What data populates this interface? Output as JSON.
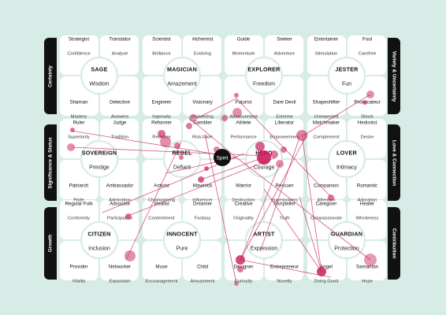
{
  "categories": {
    "top_left": "Certainty",
    "top_right": "Variety & Uncertainty",
    "mid_left": "Significance & Status",
    "mid_right": "Love & Connection",
    "bottom_left": "Growth",
    "bottom_right": "Contribution"
  },
  "spirit": {
    "label": "Spirit"
  },
  "colors": {
    "background": "#d7ece6",
    "card": "#ffffff",
    "accent": "#c81e5b",
    "spirit": "#111111"
  },
  "archetypes": [
    {
      "name": "SAGE",
      "quality": "Wisdom",
      "corners": [
        {
          "role": "Strategist",
          "trait": "Confidence"
        },
        {
          "role": "Translator",
          "trait": "Analyse"
        },
        {
          "role": "Shaman",
          "trait": "Mastery"
        },
        {
          "role": "Detective",
          "trait": "Answers"
        }
      ]
    },
    {
      "name": "MAGICIAN",
      "quality": "Amazement",
      "corners": [
        {
          "role": "Scientist",
          "trait": "Brilliance"
        },
        {
          "role": "Alchemist",
          "trait": "Evolving"
        },
        {
          "role": "Engineer",
          "trait": "Ingenuity"
        },
        {
          "role": "Visionary",
          "trait": "Pioneering"
        }
      ]
    },
    {
      "name": "EXPLORER",
      "quality": "Freedom",
      "corners": [
        {
          "role": "Guide",
          "trait": "Momentum"
        },
        {
          "role": "Seeker",
          "trait": "Adventure"
        },
        {
          "role": "Futurist",
          "trait": "Advancement"
        },
        {
          "role": "Dare Devil",
          "trait": "Extreme"
        }
      ]
    },
    {
      "name": "JESTER",
      "quality": "Fun",
      "corners": [
        {
          "role": "Entertainer",
          "trait": "Stimulation"
        },
        {
          "role": "Fool",
          "trait": "Carefree"
        },
        {
          "role": "Shapeshifter",
          "trait": "Unexpected"
        },
        {
          "role": "Provocateur",
          "trait": "Shock"
        }
      ]
    },
    {
      "name": "SOVEREIGN",
      "quality": "Prestige",
      "corners": [
        {
          "role": "Ruler",
          "trait": "Superiority"
        },
        {
          "role": "Judge",
          "trait": "Tradition"
        },
        {
          "role": "Patriarch",
          "trait": "Pride"
        },
        {
          "role": "Ambassador",
          "trait": "Admiration"
        }
      ]
    },
    {
      "name": "REBEL",
      "quality": "Defiant",
      "corners": [
        {
          "role": "Reformer",
          "trait": "Redefine"
        },
        {
          "role": "Gambler",
          "trait": "Risk-taker"
        },
        {
          "role": "Activist",
          "trait": "Championing"
        },
        {
          "role": "Maverick",
          "trait": "Influencer"
        }
      ]
    },
    {
      "name": "HERO",
      "quality": "Courage",
      "corners": [
        {
          "role": "Athlete",
          "trait": "Performance"
        },
        {
          "role": "Liberator",
          "trait": "Empowerment"
        },
        {
          "role": "Warrior",
          "trait": "Destruction"
        },
        {
          "role": "Rescuer",
          "trait": "Superpowers"
        }
      ]
    },
    {
      "name": "LOVER",
      "quality": "Intimacy",
      "corners": [
        {
          "role": "Matchmaker",
          "trait": "Complement"
        },
        {
          "role": "Hedonist",
          "trait": "Desire"
        },
        {
          "role": "Companion",
          "trait": "Attention"
        },
        {
          "role": "Romantic",
          "trait": "Adoration"
        }
      ]
    },
    {
      "name": "CITIZEN",
      "quality": "Inclusion",
      "corners": [
        {
          "role": "Regular Folk",
          "trait": "Conformity"
        },
        {
          "role": "Advocate",
          "trait": "Participation"
        },
        {
          "role": "Provider",
          "trait": "Vitality"
        },
        {
          "role": "Networker",
          "trait": "Expansion"
        }
      ]
    },
    {
      "name": "INNOCENT",
      "quality": "Pure",
      "corners": [
        {
          "role": "Idealist",
          "trait": "Contentment"
        },
        {
          "role": "Dreamer",
          "trait": "Fantasy"
        },
        {
          "role": "Muse",
          "trait": "Encouragement"
        },
        {
          "role": "Child",
          "trait": "Amusement"
        }
      ]
    },
    {
      "name": "ARTIST",
      "quality": "Expression",
      "corners": [
        {
          "role": "Creative",
          "trait": "Originality"
        },
        {
          "role": "Storyteller",
          "trait": "Truth"
        },
        {
          "role": "Designer",
          "trait": "Curiosity"
        },
        {
          "role": "Entrepreneur",
          "trait": "Novelty"
        }
      ]
    },
    {
      "name": "GUARDIAN",
      "quality": "Protection",
      "corners": [
        {
          "role": "Caregiver",
          "trait": "Compassionate"
        },
        {
          "role": "Healer",
          "trait": "Wholeness"
        },
        {
          "role": "Angel",
          "trait": "Doing Good"
        },
        {
          "role": "Samaritan",
          "trait": "Hope"
        }
      ]
    }
  ],
  "watermark": "archetypes"
}
